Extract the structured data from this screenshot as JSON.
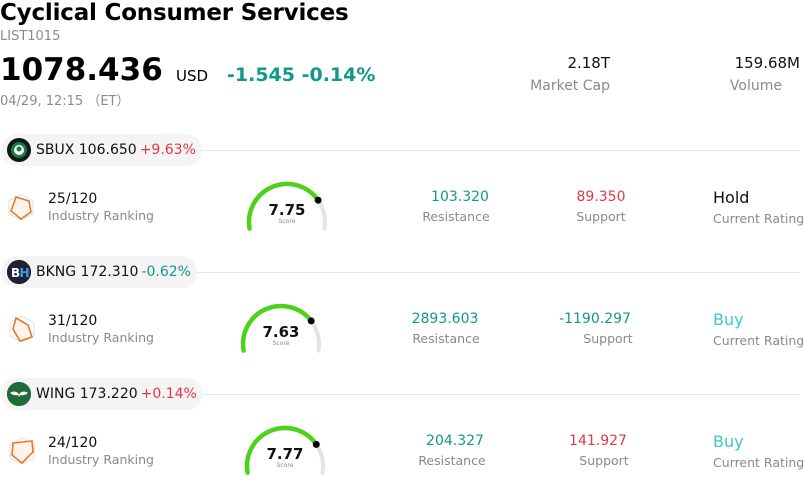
{
  "header": {
    "title": "Cyclical Consumer Services",
    "code": "LIST1015",
    "price": "1078.436",
    "currency": "USD",
    "change": "-1.545 -0.14%",
    "time": "04/29, 12:15 （ET）",
    "market_cap_value": "2.18T",
    "market_cap_label": "Market Cap",
    "volume_value": "159.68M",
    "volume_label": "Volume"
  },
  "colors": {
    "positive": "#e0384b",
    "negative": "#10998a",
    "gauge_fill": "#4cd319",
    "gauge_track": "#e2e2ea",
    "buy": "#3cc8c8"
  },
  "stocks": [
    {
      "symbol_price": "SBUX 106.650",
      "change_pct": "+9.63%",
      "direction": "up",
      "logo_icon": "starbucks-logo-icon",
      "ranking": "25/120",
      "ranking_label": "Industry Ranking",
      "score": 7.75,
      "score_text": "7.75",
      "score_label": "Score",
      "resistance": "103.320",
      "resistance_label": "Resistance",
      "support": "89.350",
      "support_label": "Support",
      "rating": "Hold",
      "rating_label": "Current Rating"
    },
    {
      "symbol_price": "BKNG 172.310",
      "change_pct": "-0.62%",
      "direction": "down",
      "logo_icon": "booking-holdings-logo-icon",
      "ranking": "31/120",
      "ranking_label": "Industry Ranking",
      "score": 7.63,
      "score_text": "7.63",
      "score_label": "Score",
      "resistance": "2893.603",
      "resistance_label": "Resistance",
      "support": "-1190.297",
      "support_label": "Support",
      "rating": "Buy",
      "rating_label": "Current Rating"
    },
    {
      "symbol_price": "WING 173.220",
      "change_pct": "+0.14%",
      "direction": "up",
      "logo_icon": "wingstop-logo-icon",
      "ranking": "24/120",
      "ranking_label": "Industry Ranking",
      "score": 7.77,
      "score_text": "7.77",
      "score_label": "Score",
      "resistance": "204.327",
      "resistance_label": "Resistance",
      "support": "141.927",
      "support_label": "Support",
      "rating": "Buy",
      "rating_label": "Current Rating"
    }
  ]
}
